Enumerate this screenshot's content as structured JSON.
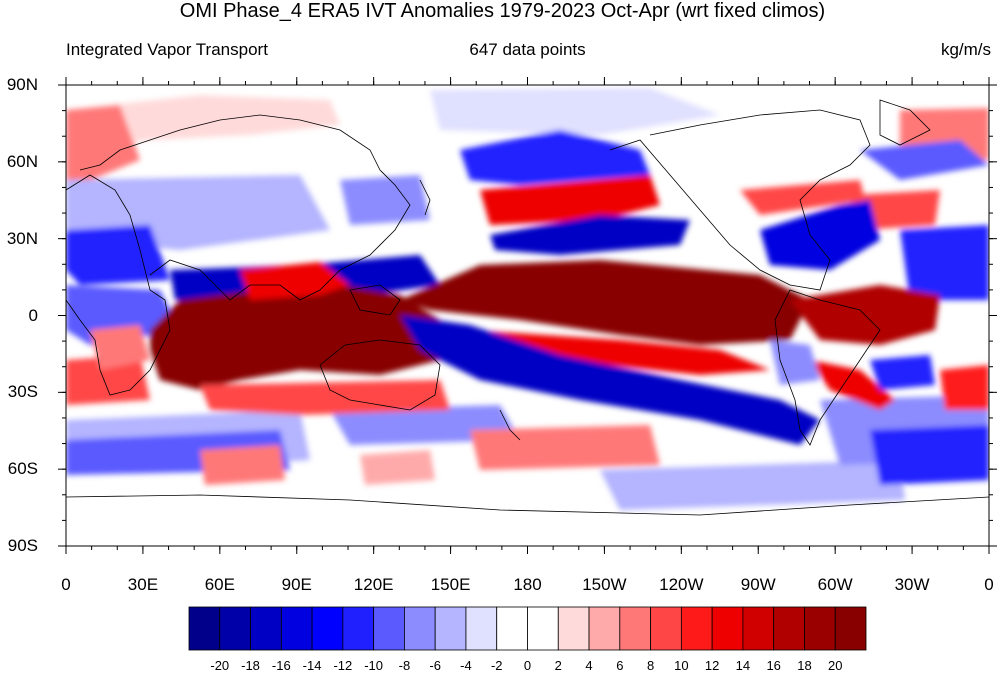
{
  "title": "OMI Phase_4 ERA5 IVT Anomalies 1979-2023 Oct-Apr (wrt fixed climos)",
  "subtitle_left": "Integrated Vapor Transport",
  "subtitle_center": "647 data points",
  "subtitle_right": "kg/m/s",
  "lat_labels": [
    "90N",
    "60N",
    "30N",
    "0",
    "30S",
    "60S",
    "90S"
  ],
  "lon_labels": [
    "0",
    "30E",
    "60E",
    "90E",
    "120E",
    "150E",
    "180",
    "150W",
    "120W",
    "90W",
    "60W",
    "30W",
    "0"
  ],
  "colorbar": {
    "labels": [
      "-20",
      "-18",
      "-16",
      "-14",
      "-12",
      "-10",
      "-8",
      "-6",
      "-4",
      "-2",
      "0",
      "2",
      "4",
      "6",
      "8",
      "10",
      "12",
      "14",
      "16",
      "18",
      "20"
    ],
    "colors": [
      "#00008b",
      "#0000a8",
      "#0000c4",
      "#0000e0",
      "#0000ff",
      "#2020ff",
      "#5a5aff",
      "#8c8cff",
      "#b4b4ff",
      "#e0e0ff",
      "#ffffff",
      "#ffffff",
      "#ffdada",
      "#ffaaaa",
      "#ff7878",
      "#ff4646",
      "#ff1a1a",
      "#ee0000",
      "#d00000",
      "#b00000",
      "#9a0000",
      "#880000"
    ]
  }
}
